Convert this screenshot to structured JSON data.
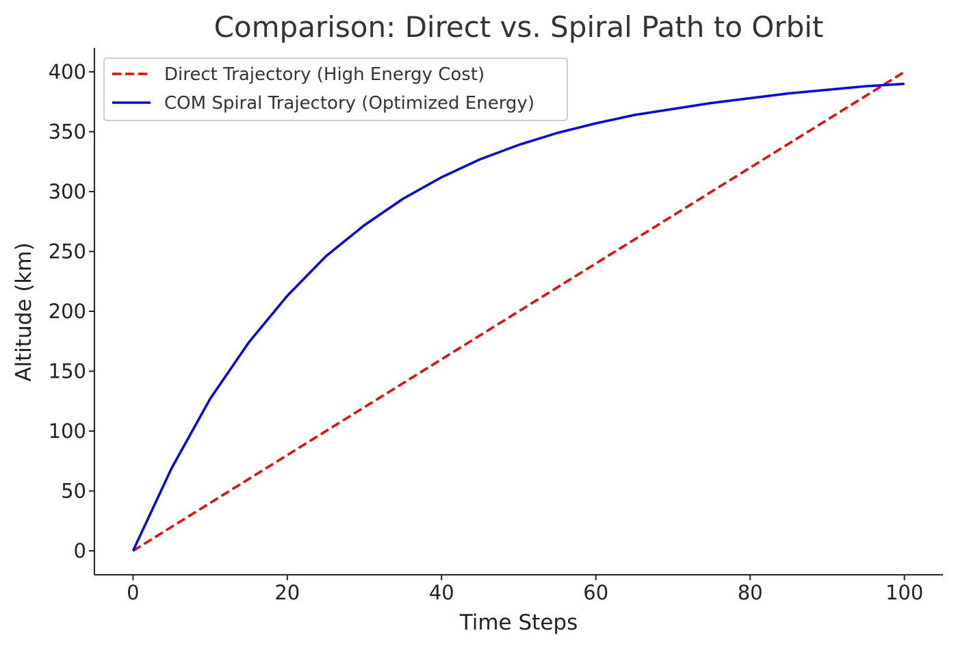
{
  "chart_data": {
    "type": "line",
    "title": "Comparison: Direct vs. Spiral Path to Orbit",
    "xlabel": "Time Steps",
    "ylabel": "Altitude (km)",
    "xlim": [
      -5,
      105
    ],
    "ylim": [
      -20,
      420
    ],
    "xticks": [
      0,
      20,
      40,
      60,
      80,
      100
    ],
    "yticks": [
      0,
      50,
      100,
      150,
      200,
      250,
      300,
      350,
      400
    ],
    "grid": false,
    "legend_position": "top-left",
    "series": [
      {
        "name": "Direct Trajectory (High Energy Cost)",
        "color": "#ff0000",
        "style": "dashed",
        "x": [
          0,
          10,
          20,
          30,
          40,
          50,
          60,
          70,
          80,
          90,
          100
        ],
        "y": [
          0,
          40,
          80,
          120,
          160,
          200,
          240,
          280,
          320,
          360,
          400
        ]
      },
      {
        "name": "COM Spiral Trajectory (Optimized Energy)",
        "color": "#0000ff",
        "style": "solid",
        "x": [
          0,
          5,
          10,
          15,
          20,
          25,
          30,
          35,
          40,
          45,
          50,
          55,
          60,
          65,
          70,
          75,
          80,
          85,
          90,
          95,
          100
        ],
        "y": [
          0,
          69,
          127,
          174,
          213,
          246,
          272,
          294,
          312,
          327,
          339,
          349,
          357,
          364,
          369,
          374,
          378,
          382,
          385,
          388,
          390
        ]
      }
    ]
  }
}
